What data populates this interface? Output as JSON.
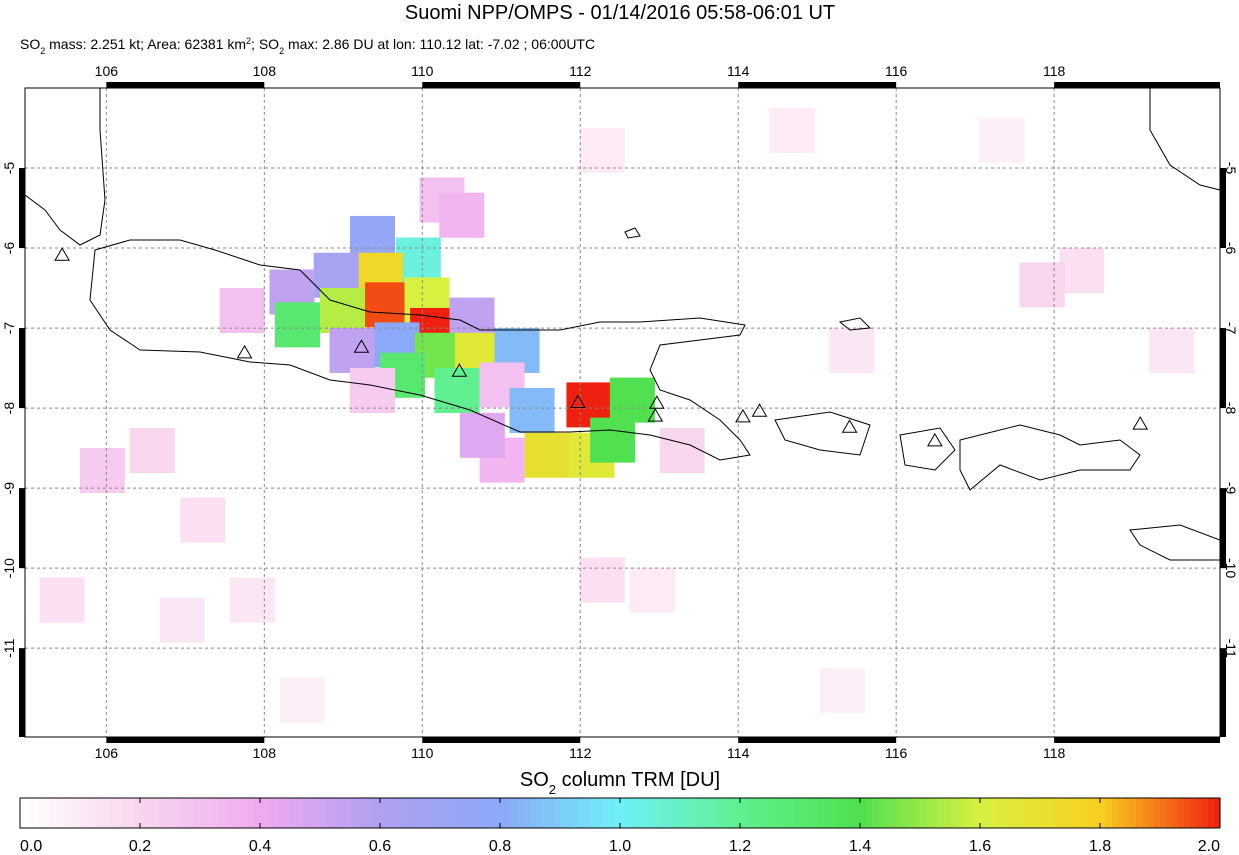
{
  "map": {
    "title": "Suomi NPP/OMPS - 01/14/2016 05:58-06:01 UT",
    "subtitle": [
      "SO",
      "2",
      " mass: 2.251 kt; Area: 62381 km",
      "2",
      "; SO",
      "2",
      " max: 2.86 DU at lon: 110.12 lat: -7.02 ; 06:00UTC"
    ],
    "xlim": [
      104.97,
      120.1
    ],
    "ylim": [
      -12.11,
      -4.0
    ],
    "xticks": [
      106,
      108,
      110,
      112,
      114,
      116,
      118
    ],
    "yticks": [
      -5,
      -6,
      -7,
      -8,
      -9,
      -10,
      -11
    ],
    "pixels": [
      [
        109.37,
        -5.88,
        0.75
      ],
      [
        109.95,
        -6.15,
        1.05
      ],
      [
        109.47,
        -6.34,
        1.75
      ],
      [
        108.91,
        -6.34,
        0.65
      ],
      [
        108.35,
        -6.55,
        0.55
      ],
      [
        108.99,
        -6.78,
        1.55
      ],
      [
        109.56,
        -6.71,
        1.95
      ],
      [
        110.06,
        -6.65,
        1.6
      ],
      [
        108.42,
        -6.96,
        1.3
      ],
      [
        110.13,
        -7.03,
        2.0
      ],
      [
        110.63,
        -6.9,
        0.55
      ],
      [
        109.11,
        -7.28,
        0.55
      ],
      [
        109.68,
        -7.21,
        0.8
      ],
      [
        110.19,
        -7.34,
        1.45
      ],
      [
        110.7,
        -7.34,
        1.65
      ],
      [
        111.2,
        -7.28,
        0.85
      ],
      [
        109.75,
        -7.59,
        1.3
      ],
      [
        110.44,
        -7.78,
        1.2
      ],
      [
        111.01,
        -7.71,
        0.3
      ],
      [
        111.39,
        -8.03,
        0.85
      ],
      [
        112.11,
        -7.96,
        2.0
      ],
      [
        112.66,
        -7.9,
        1.4
      ],
      [
        111.58,
        -8.59,
        1.7
      ],
      [
        112.15,
        -8.59,
        1.65
      ],
      [
        112.41,
        -8.4,
        1.4
      ],
      [
        111.01,
        -8.65,
        0.35
      ],
      [
        110.76,
        -8.34,
        0.45
      ],
      [
        112.28,
        -4.78,
        0.1
      ],
      [
        114.68,
        -4.53,
        0.1
      ],
      [
        117.34,
        -4.65,
        0.08
      ],
      [
        118.35,
        -6.28,
        0.15
      ],
      [
        117.85,
        -6.46,
        0.2
      ],
      [
        106.58,
        -8.53,
        0.2
      ],
      [
        105.95,
        -8.78,
        0.25
      ],
      [
        107.22,
        -9.4,
        0.15
      ],
      [
        105.44,
        -10.4,
        0.15
      ],
      [
        107.85,
        -10.4,
        0.12
      ],
      [
        112.28,
        -10.15,
        0.15
      ],
      [
        112.91,
        -10.28,
        0.1
      ],
      [
        106.96,
        -10.65,
        0.12
      ],
      [
        108.48,
        -11.65,
        0.08
      ],
      [
        115.32,
        -11.53,
        0.08
      ],
      [
        110.25,
        -5.4,
        0.3
      ],
      [
        110.5,
        -5.59,
        0.35
      ],
      [
        107.72,
        -6.78,
        0.3
      ],
      [
        109.37,
        -7.78,
        0.25
      ],
      [
        113.29,
        -8.53,
        0.2
      ],
      [
        115.44,
        -7.28,
        0.12
      ],
      [
        119.49,
        -7.28,
        0.12
      ]
    ],
    "volcanoes": [
      [
        105.44,
        -6.09
      ],
      [
        107.75,
        -7.31
      ],
      [
        109.23,
        -7.24
      ],
      [
        110.47,
        -7.54
      ],
      [
        111.97,
        -7.93
      ],
      [
        112.97,
        -7.94
      ],
      [
        112.95,
        -8.1
      ],
      [
        114.06,
        -8.11
      ],
      [
        114.27,
        -8.04
      ],
      [
        115.41,
        -8.24
      ],
      [
        116.49,
        -8.41
      ],
      [
        119.09,
        -8.2
      ]
    ],
    "colorbar": {
      "title": [
        "SO",
        "2",
        " column TRM [DU]"
      ],
      "range": [
        0,
        2
      ],
      "ticks": [
        {
          "value": 0,
          "label": "0.0"
        },
        {
          "value": 0.2,
          "label": "0.2"
        },
        {
          "value": 0.4,
          "label": "0.4"
        },
        {
          "value": 0.6,
          "label": "0.6"
        },
        {
          "value": 0.8,
          "label": "0.8"
        },
        {
          "value": 1,
          "label": "1.0"
        },
        {
          "value": 1.2,
          "label": "1.2"
        },
        {
          "value": 1.4,
          "label": "1.4"
        },
        {
          "value": 1.6,
          "label": "1.6"
        },
        {
          "value": 1.8,
          "label": "1.8"
        },
        {
          "value": 2,
          "label": "2.0"
        }
      ]
    }
  }
}
